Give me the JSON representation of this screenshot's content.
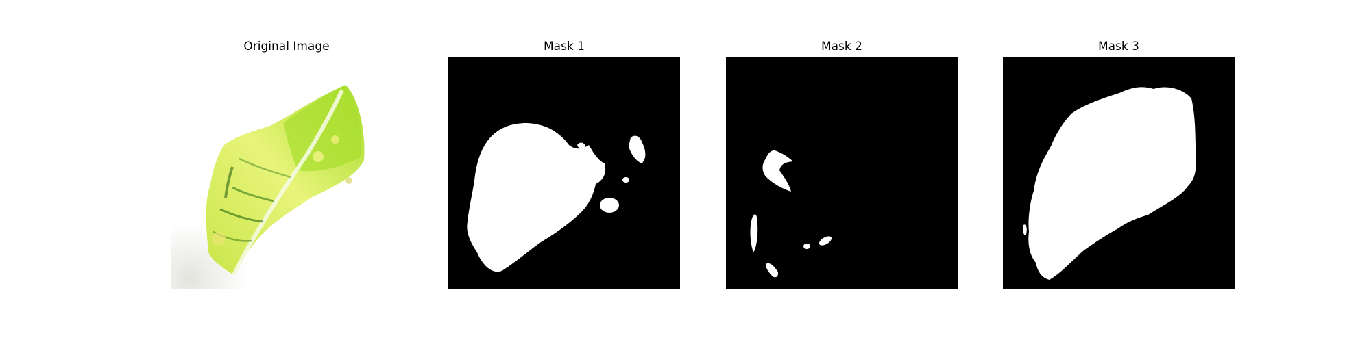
{
  "panels": [
    {
      "title": "Original Image"
    },
    {
      "title": "Mask 1"
    },
    {
      "title": "Mask 2"
    },
    {
      "title": "Mask 3"
    }
  ],
  "colors": {
    "mask_background": "#000000",
    "mask_foreground": "#ffffff",
    "leaf_light": "#e6f56a",
    "leaf_mid": "#b8e23a",
    "leaf_dark": "#3f7a1c"
  }
}
